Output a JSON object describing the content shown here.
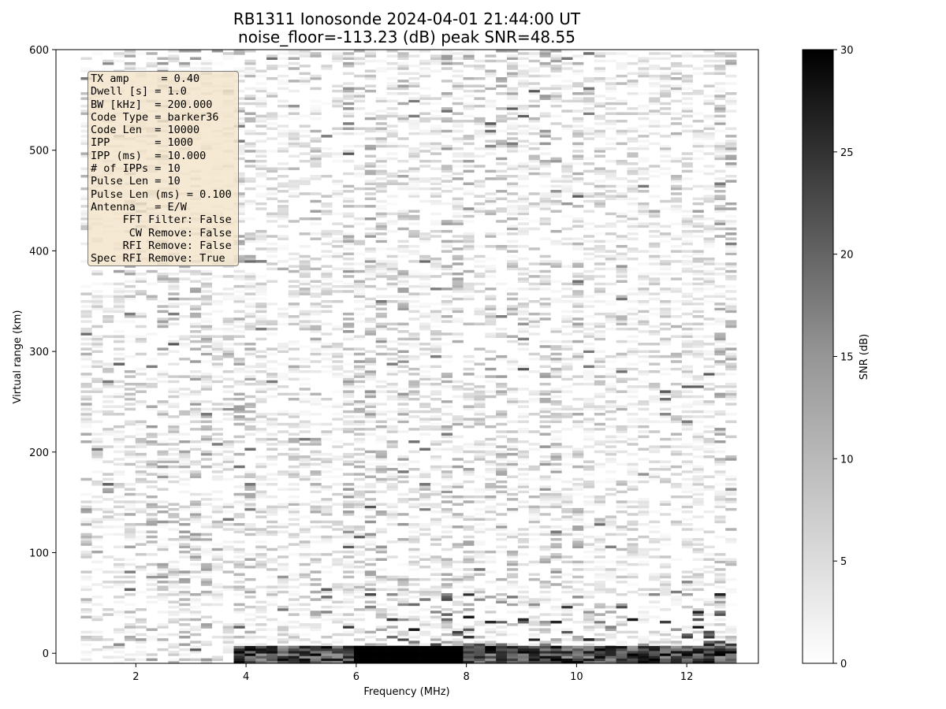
{
  "chart_data": {
    "type": "heatmap",
    "title": "RB1311 Ionosonde 2024-04-01 21:44:00  UT",
    "subtitle": "noise_floor=-113.23 (dB) peak SNR=48.55",
    "xlabel": "Frequency (MHz)",
    "ylabel": "Virtual range (km)",
    "xlim": [
      0.55,
      13.3
    ],
    "ylim": [
      -10,
      600
    ],
    "xticks": [
      2,
      4,
      6,
      8,
      10,
      12
    ],
    "yticks": [
      0,
      100,
      200,
      300,
      400,
      500,
      600
    ],
    "x_range_of_data": [
      1.0,
      12.9
    ],
    "y_range_of_data": [
      -10,
      600
    ],
    "colormap": "Greys",
    "colorbar": {
      "label": "SNR (dB)",
      "range": [
        0,
        30
      ],
      "ticks": [
        0,
        5,
        10,
        15,
        20,
        25,
        30
      ]
    },
    "description_of_values": "Mostly low SNR noise (0-10 dB) across all ranges; strong returns (25-30 dB) concentrated near 0 km range between about 3.8 and 12.9 MHz, strongest between 6 and 8 MHz.",
    "strong_band": {
      "range_km": [
        -10,
        8
      ],
      "freq_mhz": [
        3.8,
        12.9
      ],
      "peak_freq_mhz": [
        6.0,
        8.0
      ],
      "snr_db": 30
    }
  },
  "info_lines": [
    "TX amp     = 0.40",
    "Dwell [s] = 1.0",
    "BW [kHz]  = 200.000",
    "Code Type = barker36",
    "Code Len  = 10000",
    "IPP       = 1000",
    "IPP (ms)  = 10.000",
    "# of IPPs = 10",
    "Pulse Len = 10",
    "Pulse Len (ms) = 0.100",
    "Antenna   = E/W",
    "     FFT Filter: False",
    "      CW Remove: False",
    "     RFI Remove: False",
    "Spec RFI Remove: True"
  ]
}
